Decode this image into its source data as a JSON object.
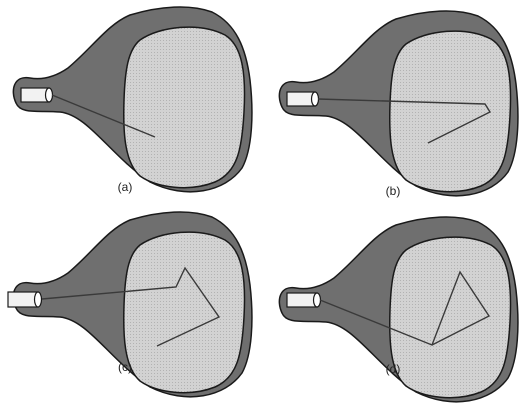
{
  "colors": {
    "tube_body": "#6f6f6f",
    "screen": "#d2d2d2",
    "outline": "#1a1a1a",
    "beam": "#3a3a3a",
    "gun": "#f2f2f2"
  },
  "icons": {
    "gun": "electron-gun-icon"
  },
  "panels": [
    {
      "id": "a",
      "label": "(a)"
    },
    {
      "id": "b",
      "label": "(b)"
    },
    {
      "id": "c",
      "label": "(c)"
    },
    {
      "id": "d",
      "label": "(d)"
    }
  ]
}
